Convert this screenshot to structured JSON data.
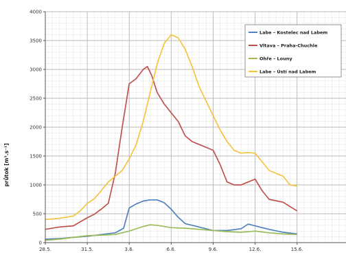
{
  "chart_data": {
    "type": "line",
    "title": "",
    "xlabel": "",
    "ylabel": "průtok [m³.s⁻¹]",
    "ylim": [
      0,
      4000
    ],
    "yticks": [
      0,
      500,
      1000,
      1500,
      2000,
      2500,
      3000,
      3500,
      4000
    ],
    "xlim": [
      0,
      21.5
    ],
    "xticks": [
      {
        "pos": 0,
        "label": "28.5."
      },
      {
        "pos": 3,
        "label": "31.5."
      },
      {
        "pos": 6,
        "label": "3.6."
      },
      {
        "pos": 9,
        "label": "6.6."
      },
      {
        "pos": 12,
        "label": "9.6."
      },
      {
        "pos": 15,
        "label": "12.6."
      },
      {
        "pos": 18,
        "label": "15.6."
      }
    ],
    "grid": true,
    "legend_position": "top-right",
    "series": [
      {
        "name": "Labe – Kostelec nad Labem",
        "color": "#4f81bd",
        "x": [
          0,
          1,
          2,
          3,
          4,
          5,
          5.6,
          6,
          6.5,
          7,
          7.5,
          8,
          8.5,
          9,
          9.5,
          10,
          11,
          12,
          13,
          14,
          14.5,
          15,
          16,
          17,
          18
        ],
        "values": [
          60,
          70,
          90,
          110,
          140,
          170,
          250,
          600,
          670,
          720,
          740,
          740,
          690,
          580,
          440,
          330,
          270,
          210,
          210,
          240,
          320,
          290,
          230,
          180,
          150
        ]
      },
      {
        "name": "Vltava – Praha-Chuchle",
        "color": "#c0504d",
        "x": [
          0,
          1,
          2,
          2.5,
          3,
          3.5,
          4,
          4.5,
          5,
          5.5,
          6,
          6.5,
          7,
          7.3,
          7.6,
          8,
          8.5,
          9,
          9.5,
          10,
          10.5,
          11,
          11.5,
          12,
          12.5,
          13,
          13.5,
          14,
          14.5,
          15,
          15.5,
          16,
          17,
          18
        ],
        "values": [
          230,
          270,
          290,
          360,
          430,
          490,
          580,
          680,
          1200,
          2000,
          2750,
          2840,
          3000,
          3050,
          2900,
          2600,
          2400,
          2250,
          2100,
          1850,
          1750,
          1700,
          1650,
          1600,
          1350,
          1050,
          1000,
          1000,
          1050,
          1100,
          900,
          750,
          700,
          550
        ]
      },
      {
        "name": "Ohře – Louny",
        "color": "#9bbb59",
        "x": [
          0,
          1,
          2,
          3,
          4,
          5,
          6,
          7,
          7.5,
          8,
          9,
          10,
          11,
          12,
          13,
          14,
          15,
          16,
          17,
          18
        ],
        "values": [
          40,
          60,
          90,
          120,
          130,
          140,
          200,
          280,
          310,
          300,
          260,
          250,
          230,
          210,
          190,
          180,
          200,
          170,
          150,
          140
        ]
      },
      {
        "name": "Labe – Ústí nad Labem",
        "color": "#f5c342",
        "x": [
          0,
          1,
          2,
          2.5,
          3,
          3.5,
          4,
          4.5,
          5,
          5.5,
          6,
          6.5,
          7,
          7.5,
          8,
          8.5,
          9,
          9.5,
          10,
          10.5,
          11,
          11.5,
          12,
          12.5,
          13,
          13.5,
          14,
          14.5,
          15,
          15.5,
          16,
          16.5,
          17,
          17.5,
          18
        ],
        "values": [
          400,
          420,
          460,
          550,
          680,
          760,
          900,
          1050,
          1150,
          1250,
          1450,
          1700,
          2100,
          2600,
          3100,
          3450,
          3600,
          3550,
          3350,
          3050,
          2700,
          2450,
          2200,
          1950,
          1750,
          1600,
          1550,
          1560,
          1550,
          1400,
          1250,
          1200,
          1150,
          1000,
          980
        ]
      }
    ]
  }
}
